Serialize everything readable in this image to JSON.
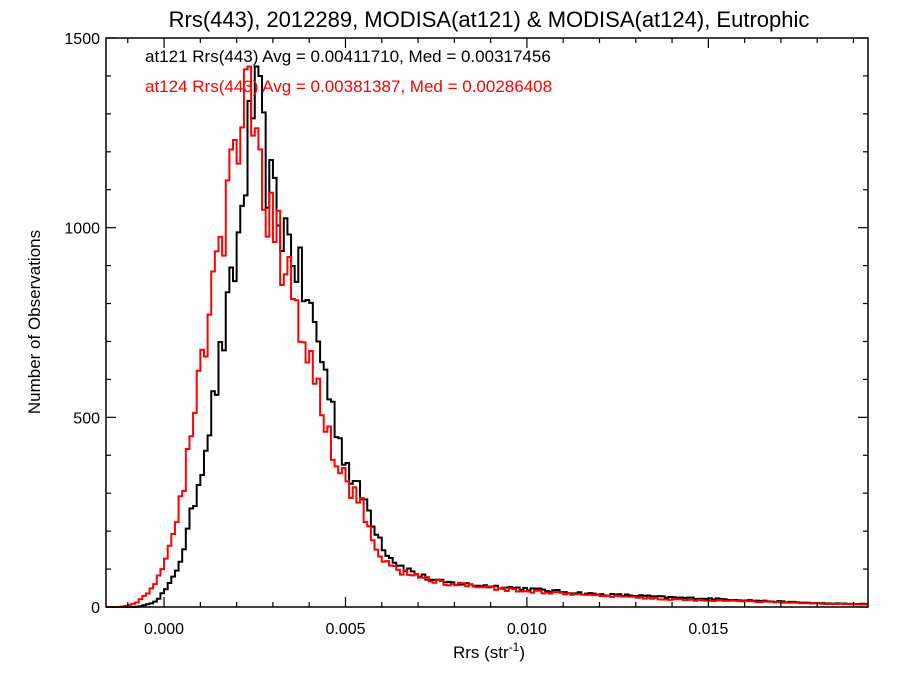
{
  "chart_data": {
    "type": "histogram-step",
    "title": "Rrs(443), 2012289, MODISA(at121) & MODISA(at124), Eutrophic",
    "xlabel": "Rrs (str",
    "xlabel_sup": "-1",
    "xlabel_close": ")",
    "ylabel": "Number of Observations",
    "xlim": [
      -0.0016,
      0.0194
    ],
    "ylim": [
      0,
      1500
    ],
    "x_ticks": [
      0.0,
      0.005,
      0.01,
      0.015
    ],
    "x_tick_labels": [
      "0.000",
      "0.005",
      "0.010",
      "0.015"
    ],
    "y_ticks": [
      0,
      500,
      1000,
      1500
    ],
    "y_tick_labels": [
      "0",
      "500",
      "1000",
      "1500"
    ],
    "grid": false,
    "bin_width": 0.0001,
    "annotations": [
      {
        "text": "at121 Rrs(443) Avg = 0.00411710, Med = 0.00317456",
        "color": "#000000"
      },
      {
        "text": "at124 Rrs(443) Avg = 0.00381387, Med = 0.00286408",
        "color": "#ff0000"
      }
    ],
    "series": [
      {
        "color": "#000000",
        "points": [
          [
            -0.0016,
            0
          ],
          [
            -0.0008,
            0
          ],
          [
            -0.0006,
            3
          ],
          [
            -0.0004,
            8
          ],
          [
            -0.0002,
            18
          ],
          [
            0.0,
            40
          ],
          [
            0.0002,
            65
          ],
          [
            0.0004,
            110
          ],
          [
            0.0006,
            175
          ],
          [
            0.0008,
            260
          ],
          [
            0.001,
            355
          ],
          [
            0.0012,
            455
          ],
          [
            0.0014,
            560
          ],
          [
            0.0016,
            680
          ],
          [
            0.0018,
            800
          ],
          [
            0.002,
            920
          ],
          [
            0.0022,
            1100
          ],
          [
            0.0024,
            1290
          ],
          [
            0.0025,
            1365
          ],
          [
            0.0026,
            1340
          ],
          [
            0.0027,
            1250
          ],
          [
            0.0028,
            1170
          ],
          [
            0.003,
            1070
          ],
          [
            0.0032,
            1020
          ],
          [
            0.0034,
            980
          ],
          [
            0.0036,
            930
          ],
          [
            0.0038,
            850
          ],
          [
            0.004,
            790
          ],
          [
            0.0042,
            720
          ],
          [
            0.0044,
            640
          ],
          [
            0.0046,
            540
          ],
          [
            0.0048,
            460
          ],
          [
            0.005,
            390
          ],
          [
            0.0052,
            330
          ],
          [
            0.0054,
            300
          ],
          [
            0.0056,
            270
          ],
          [
            0.0058,
            215
          ],
          [
            0.006,
            170
          ],
          [
            0.0062,
            135
          ],
          [
            0.0065,
            110
          ],
          [
            0.007,
            85
          ],
          [
            0.0075,
            68
          ],
          [
            0.008,
            62
          ],
          [
            0.009,
            55
          ],
          [
            0.01,
            48
          ],
          [
            0.011,
            40
          ],
          [
            0.012,
            33
          ],
          [
            0.013,
            30
          ],
          [
            0.014,
            25
          ],
          [
            0.015,
            22
          ],
          [
            0.016,
            18
          ],
          [
            0.017,
            14
          ],
          [
            0.018,
            10
          ],
          [
            0.019,
            8
          ]
        ]
      },
      {
        "color": "#ff0000",
        "points": [
          [
            -0.0016,
            0
          ],
          [
            -0.0012,
            0
          ],
          [
            -0.001,
            4
          ],
          [
            -0.0008,
            10
          ],
          [
            -0.0006,
            22
          ],
          [
            -0.0004,
            42
          ],
          [
            -0.0002,
            70
          ],
          [
            0.0,
            115
          ],
          [
            0.0002,
            170
          ],
          [
            0.0004,
            250
          ],
          [
            0.0006,
            350
          ],
          [
            0.0008,
            480
          ],
          [
            0.001,
            610
          ],
          [
            0.0012,
            760
          ],
          [
            0.0014,
            880
          ],
          [
            0.0016,
            990
          ],
          [
            0.0018,
            1090
          ],
          [
            0.002,
            1210
          ],
          [
            0.0022,
            1330
          ],
          [
            0.0023,
            1350
          ],
          [
            0.0024,
            1310
          ],
          [
            0.0025,
            1250
          ],
          [
            0.0026,
            1150
          ],
          [
            0.0027,
            1100
          ],
          [
            0.0028,
            1040
          ],
          [
            0.003,
            990
          ],
          [
            0.0032,
            950
          ],
          [
            0.0034,
            880
          ],
          [
            0.0036,
            800
          ],
          [
            0.0038,
            720
          ],
          [
            0.004,
            660
          ],
          [
            0.0042,
            600
          ],
          [
            0.0044,
            520
          ],
          [
            0.0046,
            430
          ],
          [
            0.0048,
            380
          ],
          [
            0.005,
            330
          ],
          [
            0.0052,
            300
          ],
          [
            0.0054,
            280
          ],
          [
            0.0056,
            225
          ],
          [
            0.0058,
            160
          ],
          [
            0.006,
            130
          ],
          [
            0.0062,
            110
          ],
          [
            0.0065,
            95
          ],
          [
            0.007,
            80
          ],
          [
            0.0075,
            68
          ],
          [
            0.008,
            60
          ],
          [
            0.009,
            50
          ],
          [
            0.01,
            42
          ],
          [
            0.011,
            35
          ],
          [
            0.012,
            30
          ],
          [
            0.013,
            25
          ],
          [
            0.014,
            20
          ],
          [
            0.015,
            17
          ],
          [
            0.016,
            15
          ],
          [
            0.017,
            12
          ],
          [
            0.018,
            9
          ],
          [
            0.019,
            7
          ]
        ]
      }
    ]
  }
}
